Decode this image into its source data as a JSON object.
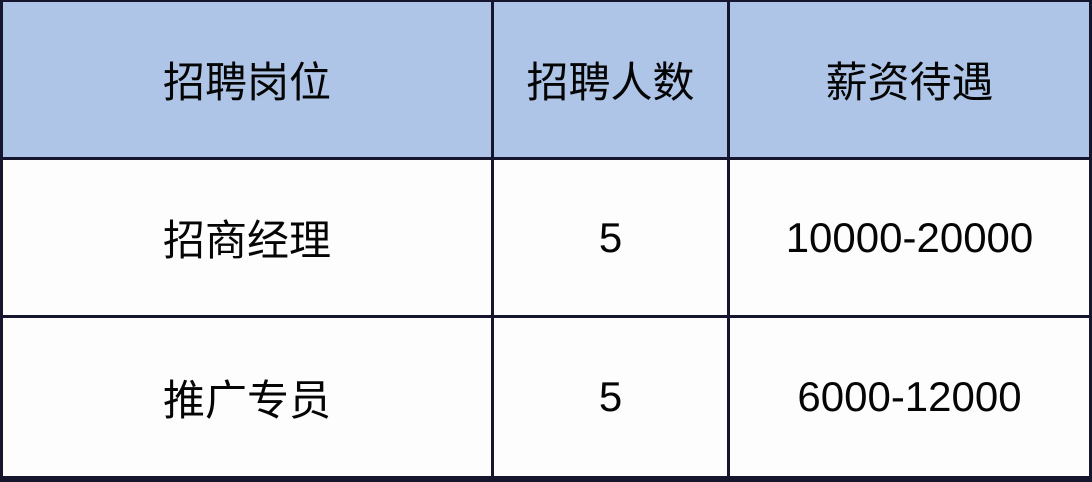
{
  "chart_data": {
    "type": "table",
    "title": "",
    "columns": [
      "招聘岗位",
      "招聘人数",
      "薪资待遇"
    ],
    "rows": [
      [
        "招商经理",
        "5",
        "10000-20000"
      ],
      [
        "推广专员",
        "5",
        "6000-12000"
      ]
    ]
  },
  "colors": {
    "header_bg": "#aec5e8",
    "cell_bg": "#fdfdfd",
    "border": "#15152e",
    "text": "#050505"
  }
}
